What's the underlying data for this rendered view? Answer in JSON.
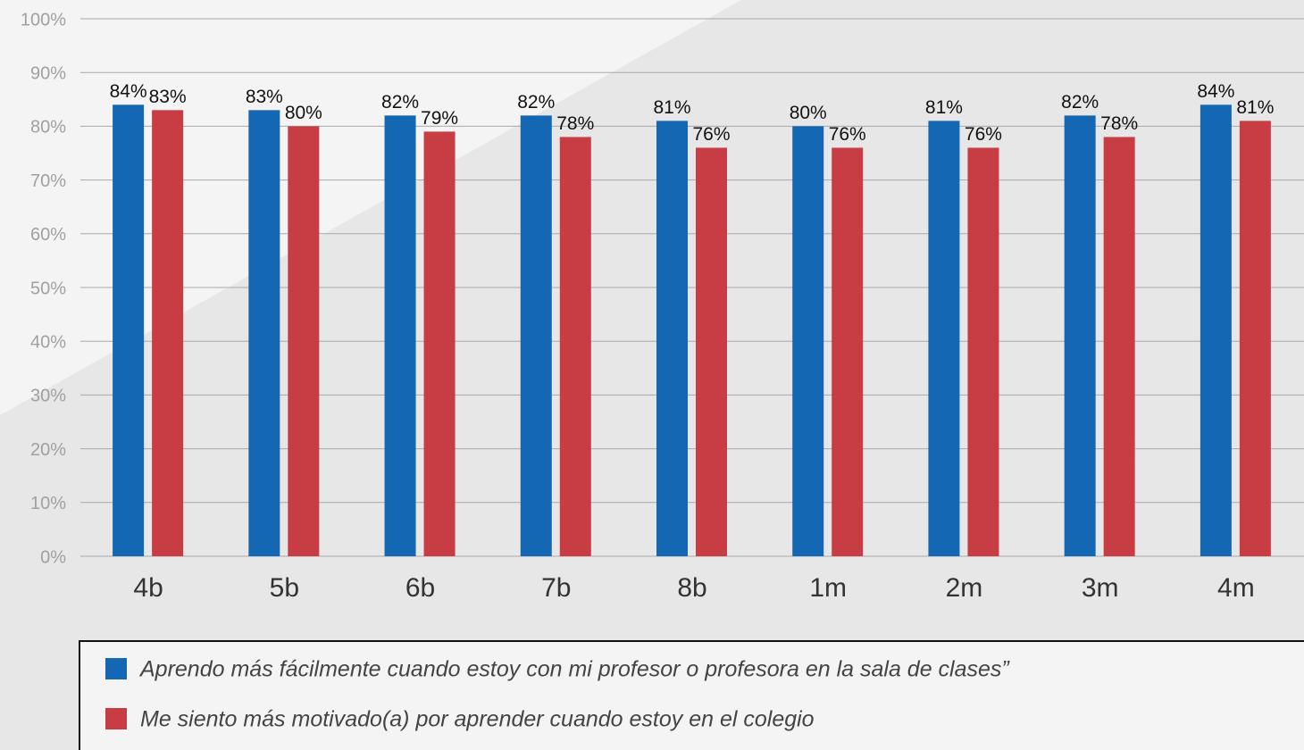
{
  "chart_data": {
    "type": "bar",
    "categories": [
      "4b",
      "5b",
      "6b",
      "7b",
      "8b",
      "1m",
      "2m",
      "3m",
      "4m"
    ],
    "series": [
      {
        "name": "Aprendo más fácilmente cuando estoy con mi profesor o profesora en la sala de clases”",
        "color": "#1467b3",
        "values": [
          84,
          83,
          82,
          82,
          81,
          80,
          81,
          82,
          84
        ],
        "value_labels": [
          "84%",
          "83%",
          "82%",
          "82%",
          "81%",
          "80%",
          "81%",
          "82%",
          "84%"
        ]
      },
      {
        "name": "Me siento más motivado(a) por aprender cuando estoy en el colegio",
        "color": "#c83c43",
        "values": [
          83,
          80,
          79,
          78,
          76,
          76,
          76,
          78,
          81
        ],
        "value_labels": [
          "83%",
          "80%",
          "79%",
          "78%",
          "76%",
          "76%",
          "76%",
          "78%",
          "81%"
        ]
      }
    ],
    "ylim": [
      0,
      100
    ],
    "yticks": [
      {
        "value": 0,
        "label": "0%"
      },
      {
        "value": 10,
        "label": "10%"
      },
      {
        "value": 20,
        "label": "20%"
      },
      {
        "value": 30,
        "label": "30%"
      },
      {
        "value": 40,
        "label": "40%"
      },
      {
        "value": 50,
        "label": "50%"
      },
      {
        "value": 60,
        "label": "60%"
      },
      {
        "value": 70,
        "label": "70%"
      },
      {
        "value": 80,
        "label": "80%"
      },
      {
        "value": 90,
        "label": "90%"
      },
      {
        "value": 100,
        "label": "100%"
      }
    ],
    "grid": true
  }
}
